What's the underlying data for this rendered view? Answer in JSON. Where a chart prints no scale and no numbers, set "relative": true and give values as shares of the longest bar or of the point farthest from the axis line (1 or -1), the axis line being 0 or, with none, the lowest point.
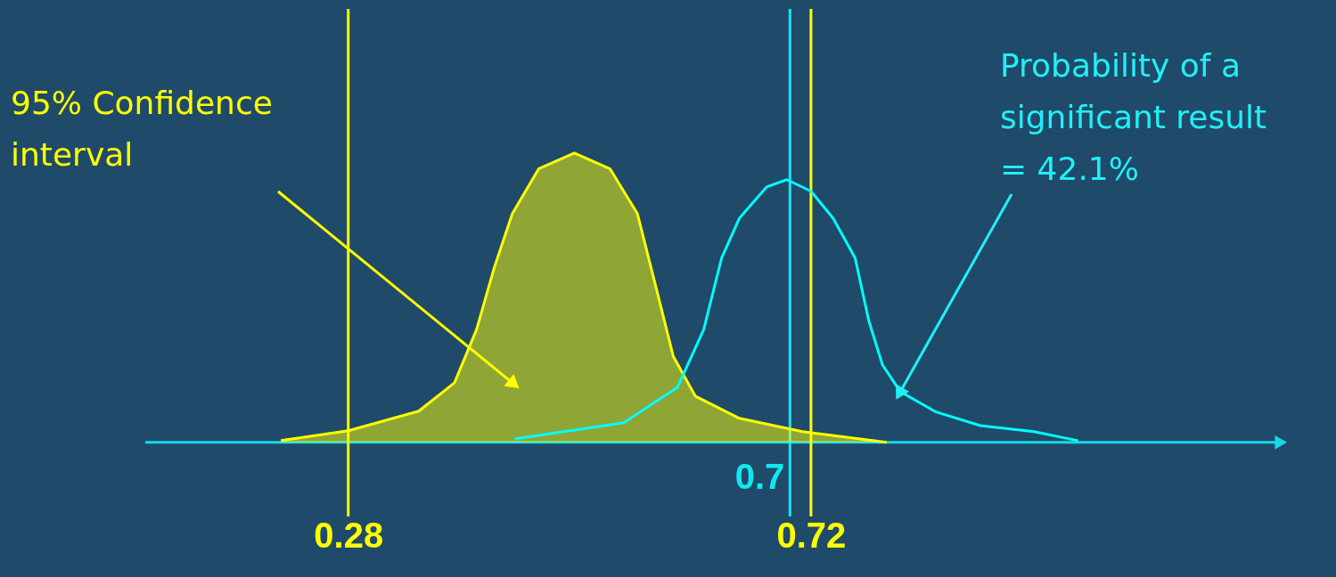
{
  "chart_data": {
    "type": "line",
    "relative": true,
    "xlim": [
      0.087,
      1.165
    ],
    "xticks": [
      0.28,
      0.72
    ],
    "grid": false,
    "line_style": "solid",
    "series": [
      {
        "type": "area",
        "color": "#ffff00",
        "x": [
          0.216,
          0.28,
          0.347,
          0.381,
          0.402,
          0.419,
          0.436,
          0.461,
          0.495,
          0.529,
          0.555,
          0.572,
          0.589,
          0.61,
          0.652,
          0.712,
          0.792
        ],
        "values": [
          0.006,
          0.04,
          0.108,
          0.206,
          0.39,
          0.606,
          0.79,
          0.945,
          1,
          0.945,
          0.79,
          0.545,
          0.298,
          0.16,
          0.083,
          0.037,
          0.0
        ]
      },
      {
        "color": "#00ffff",
        "x": [
          0.438,
          0.542,
          0.593,
          0.618,
          0.635,
          0.652,
          0.678,
          0.697,
          0.72,
          0.741,
          0.762,
          0.775,
          0.788,
          0.805,
          0.839,
          0.881,
          0.932,
          0.974
        ],
        "values": [
          0.012,
          0.068,
          0.19,
          0.39,
          0.637,
          0.775,
          0.883,
          0.908,
          0.868,
          0.775,
          0.637,
          0.42,
          0.268,
          0.175,
          0.105,
          0.058,
          0.037,
          0.006
        ]
      }
    ],
    "ref_lines": [
      {
        "axis": "x",
        "value": 0.28,
        "color": "#ffff00"
      },
      {
        "axis": "x",
        "value": 0.72,
        "color": "#ffff00"
      },
      {
        "axis": "x",
        "value": 0.7,
        "label": "0.7",
        "color": "#10e8f0"
      }
    ],
    "annotations": [
      {
        "text": "95% Confidence\ninterval",
        "x": 0.436,
        "y": 0.206
      },
      {
        "text": "Probability of a\nsignificant result\n= 42.1%",
        "x": 0.805,
        "y": 0.175
      }
    ]
  }
}
